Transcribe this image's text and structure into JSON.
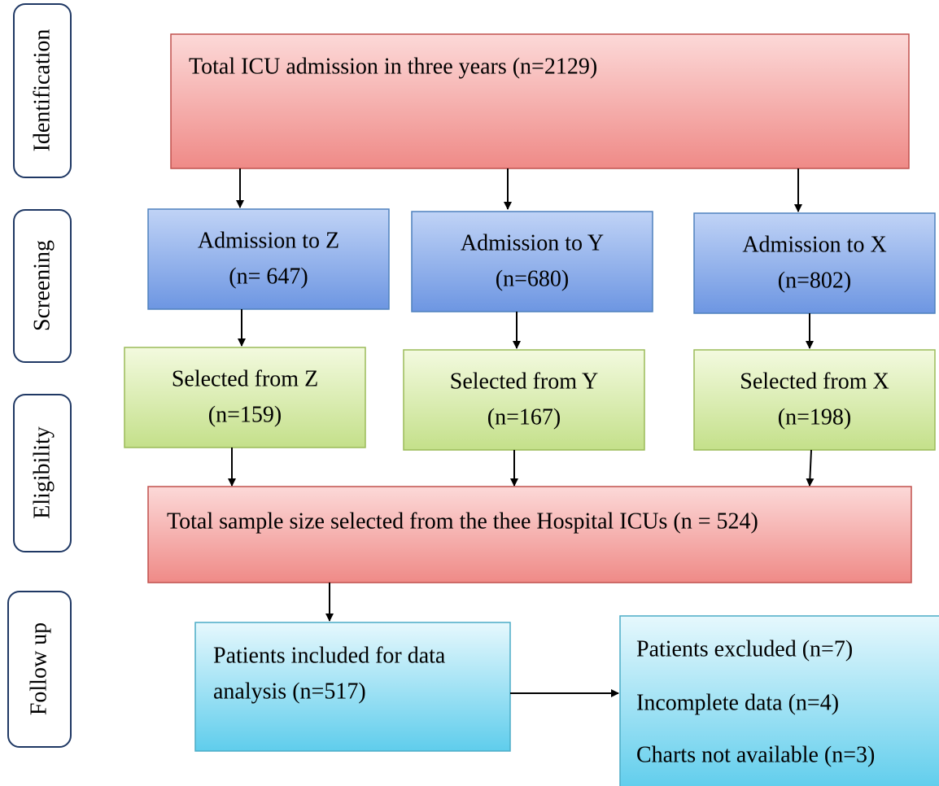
{
  "stages": [
    "Identification",
    "Screening",
    "Eligibility",
    "Follow up"
  ],
  "total": "Total ICU admission in three years (n=2129)",
  "admissions": [
    {
      "lines": [
        "Admission to Z",
        "(n= 647)"
      ]
    },
    {
      "lines": [
        "Admission to Y",
        "(n=680)"
      ]
    },
    {
      "lines": [
        "Admission to X",
        "(n=802)"
      ]
    }
  ],
  "selected": [
    {
      "lines": [
        "Selected from Z",
        "(n=159)"
      ]
    },
    {
      "lines": [
        "Selected from Y",
        "(n=167)"
      ]
    },
    {
      "lines": [
        "Selected from X",
        "(n=198)"
      ]
    }
  ],
  "sample": "Total sample size selected from the thee Hospital ICUs (n = 524)",
  "included": {
    "lines": [
      "Patients included for data",
      "analysis (n=517)"
    ]
  },
  "excluded": {
    "lines": [
      "Patients excluded (n=7)",
      "Incomplete data (n=4)",
      "Charts not available (n=3)"
    ]
  }
}
